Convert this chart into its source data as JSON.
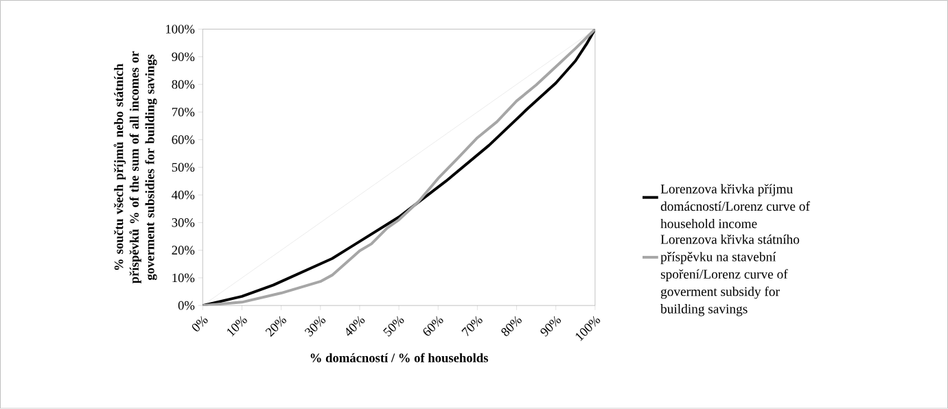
{
  "chart_data": {
    "type": "line",
    "xlabel": "% domácností / % of households",
    "ylabel": "% součtu všech příjmů nebo státních příspěvků % of the sum of all incomes or goverment subsidies for building savings",
    "xlim": [
      0,
      100
    ],
    "ylim": [
      0,
      100
    ],
    "xticks": [
      {
        "value": 0,
        "label": "0%"
      },
      {
        "value": 10,
        "label": "10%"
      },
      {
        "value": 20,
        "label": "20%"
      },
      {
        "value": 30,
        "label": "30%"
      },
      {
        "value": 40,
        "label": "40%"
      },
      {
        "value": 50,
        "label": "50%"
      },
      {
        "value": 60,
        "label": "60%"
      },
      {
        "value": 70,
        "label": "70%"
      },
      {
        "value": 80,
        "label": "80%"
      },
      {
        "value": 90,
        "label": "90%"
      },
      {
        "value": 100,
        "label": "100%"
      }
    ],
    "yticks": [
      {
        "value": 0,
        "label": "0%"
      },
      {
        "value": 10,
        "label": "10%"
      },
      {
        "value": 20,
        "label": "20%"
      },
      {
        "value": 30,
        "label": "30%"
      },
      {
        "value": 40,
        "label": "40%"
      },
      {
        "value": 50,
        "label": "50%"
      },
      {
        "value": 60,
        "label": "60%"
      },
      {
        "value": 70,
        "label": "70%"
      },
      {
        "value": 80,
        "label": "80%"
      },
      {
        "value": 90,
        "label": "90%"
      },
      {
        "value": 100,
        "label": "100%"
      }
    ],
    "legend": "right",
    "series": [
      {
        "color": "#d9d9d9",
        "x": [
          0,
          100
        ],
        "values": [
          0,
          100
        ]
      },
      {
        "name": "Lorenzova křivka příjmu domácností/Lorenz curve of household income",
        "color": "#000000",
        "x": [
          0,
          10,
          18,
          33,
          50,
          62,
          73,
          83,
          90,
          95,
          98,
          100
        ],
        "values": [
          0,
          3.3,
          7.4,
          17,
          32,
          45,
          58,
          71.5,
          80.5,
          88.5,
          95,
          100
        ]
      },
      {
        "name": "Lorenzova křivka státního příspěvku na stavební spoření/Lorenz curve of goverment subsidy for building savings",
        "color": "#a6a6a6",
        "x": [
          0,
          10,
          20,
          30,
          33,
          37,
          40,
          43,
          47,
          50,
          55,
          60,
          65,
          70,
          75,
          80,
          85,
          90,
          95,
          100
        ],
        "values": [
          0,
          1.2,
          4.5,
          8.7,
          11,
          16,
          19.8,
          22.3,
          28,
          31,
          37.6,
          46,
          53.3,
          60.7,
          66.5,
          74,
          79.8,
          86.4,
          93,
          100
        ]
      }
    ]
  }
}
